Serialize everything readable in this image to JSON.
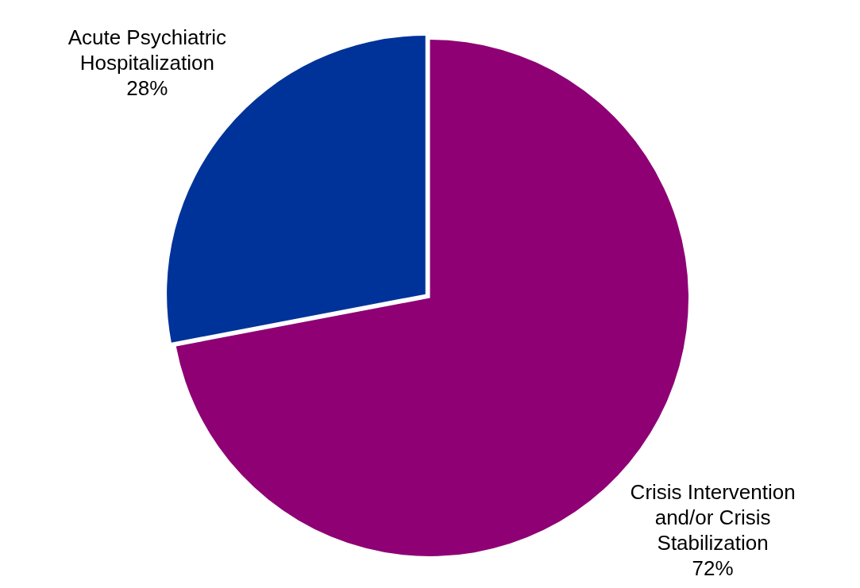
{
  "chart_data": {
    "type": "pie",
    "categories": [
      "Crisis Intervention and/or Crisis Stabilization",
      "Acute Psychiatric Hospitalization"
    ],
    "values": [
      72,
      28
    ],
    "colors": [
      "#8e0074",
      "#003399"
    ],
    "value_labels": [
      "72%",
      "28%"
    ],
    "legend": false
  }
}
